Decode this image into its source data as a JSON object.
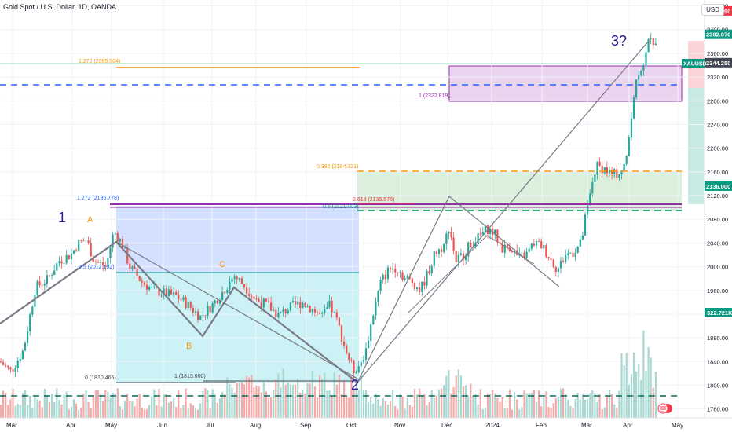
{
  "header": {
    "symbol_title": "Gold Spot / U.S. Dollar, 1D, OANDA",
    "currency_button": "USD"
  },
  "chart_data": {
    "type": "candlestick",
    "symbol": "XAUUSD",
    "ylim": [
      1745,
      2450
    ],
    "y_ticks": [
      1760,
      1800,
      1840,
      1880,
      1920,
      1960,
      2000,
      2040,
      2080,
      2120,
      2160,
      2200,
      2240,
      2280,
      2320,
      2360,
      2400,
      2440
    ],
    "x_tick_labels": [
      "Mar",
      "Apr",
      "May",
      "Jun",
      "Jul",
      "Aug",
      "Sep",
      "Oct",
      "Nov",
      "Dec",
      "2024",
      "Feb",
      "Mar",
      "Apr",
      "May"
    ],
    "price_path": [
      [
        0,
        1840
      ],
      [
        14,
        1823
      ],
      [
        30,
        1860
      ],
      [
        45,
        1965
      ],
      [
        60,
        1978
      ],
      [
        75,
        2010
      ],
      [
        90,
        2020
      ],
      [
        100,
        2040
      ],
      [
        110,
        2045
      ],
      [
        120,
        2010
      ],
      [
        135,
        2000
      ],
      [
        145,
        2060
      ],
      [
        155,
        2040
      ],
      [
        165,
        2000
      ],
      [
        180,
        1975
      ],
      [
        195,
        1960
      ],
      [
        210,
        1955
      ],
      [
        225,
        1950
      ],
      [
        240,
        1935
      ],
      [
        255,
        1915
      ],
      [
        270,
        1935
      ],
      [
        285,
        1960
      ],
      [
        298,
        1985
      ],
      [
        310,
        1970
      ],
      [
        325,
        1945
      ],
      [
        340,
        1935
      ],
      [
        355,
        1918
      ],
      [
        370,
        1932
      ],
      [
        385,
        1940
      ],
      [
        398,
        1928
      ],
      [
        410,
        1915
      ],
      [
        420,
        1935
      ],
      [
        430,
        1905
      ],
      [
        440,
        1860
      ],
      [
        450,
        1825
      ],
      [
        458,
        1835
      ],
      [
        466,
        1860
      ],
      [
        475,
        1920
      ],
      [
        485,
        1975
      ],
      [
        495,
        1995
      ],
      [
        505,
        2000
      ],
      [
        515,
        1980
      ],
      [
        525,
        1975
      ],
      [
        535,
        1960
      ],
      [
        545,
        1990
      ],
      [
        555,
        2025
      ],
      [
        565,
        2035
      ],
      [
        572,
        2070
      ],
      [
        580,
        2010
      ],
      [
        590,
        2020
      ],
      [
        600,
        2040
      ],
      [
        610,
        2050
      ],
      [
        620,
        2065
      ],
      [
        630,
        2055
      ],
      [
        640,
        2030
      ],
      [
        650,
        2035
      ],
      [
        660,
        2015
      ],
      [
        670,
        2020
      ],
      [
        680,
        2040
      ],
      [
        690,
        2035
      ],
      [
        700,
        2015
      ],
      [
        710,
        1995
      ],
      [
        720,
        2020
      ],
      [
        730,
        2025
      ],
      [
        740,
        2040
      ],
      [
        745,
        2080
      ],
      [
        750,
        2110
      ],
      [
        755,
        2150
      ],
      [
        760,
        2170
      ],
      [
        770,
        2165
      ],
      [
        780,
        2155
      ],
      [
        790,
        2160
      ],
      [
        798,
        2180
      ],
      [
        803,
        2250
      ],
      [
        808,
        2300
      ],
      [
        813,
        2330
      ],
      [
        818,
        2340
      ],
      [
        823,
        2360
      ],
      [
        828,
        2395
      ],
      [
        833,
        2375
      ],
      [
        838,
        2392
      ]
    ],
    "last_price_label": "2392.070",
    "price_labels": [
      {
        "text": "2431.590",
        "price": 2431.59,
        "color": "#f23645"
      },
      {
        "text": "2392.070",
        "price": 2392.07,
        "color": "#089981"
      },
      {
        "text": "2344.250",
        "price": 2344.25,
        "color": "#434651"
      },
      {
        "text": "2136.000",
        "price": 2136.0,
        "color": "#089981"
      }
    ],
    "volume_label": "322.721K",
    "annotations": [
      {
        "text": "1.272 (2385.504)",
        "color": "#ff9800"
      },
      {
        "text": "1 (2322.819)",
        "color": "#9c27b0"
      },
      {
        "text": "0.382 (2194.321)",
        "color": "#ff9800"
      },
      {
        "text": "2.618 (2135.576)",
        "color": "#f23645"
      },
      {
        "text": "0.5 (2121.003)",
        "color": "#089981"
      },
      {
        "text": "1.272 (2136.778)",
        "color": "#2962ff"
      },
      {
        "text": "0.5 (2012.102)",
        "color": "#2962ff"
      },
      {
        "text": "0 (1810.465)",
        "color": "#434651"
      },
      {
        "text": "1 (1813.600)",
        "color": "#434651"
      }
    ],
    "wave_labels": [
      {
        "text": "1",
        "color": "#311b92"
      },
      {
        "text": "A",
        "color": "#ff9800"
      },
      {
        "text": "B",
        "color": "#ff9800"
      },
      {
        "text": "C",
        "color": "#ff9800"
      },
      {
        "text": "2",
        "color": "#311b92"
      },
      {
        "text": "3?",
        "color": "#311b92"
      }
    ]
  },
  "colors": {
    "up": "#26a69a",
    "down": "#ef5350",
    "purple": "#9c27b0",
    "orange": "#ff9800",
    "blue_dash": "#2962ff",
    "green_dash": "#089981"
  }
}
